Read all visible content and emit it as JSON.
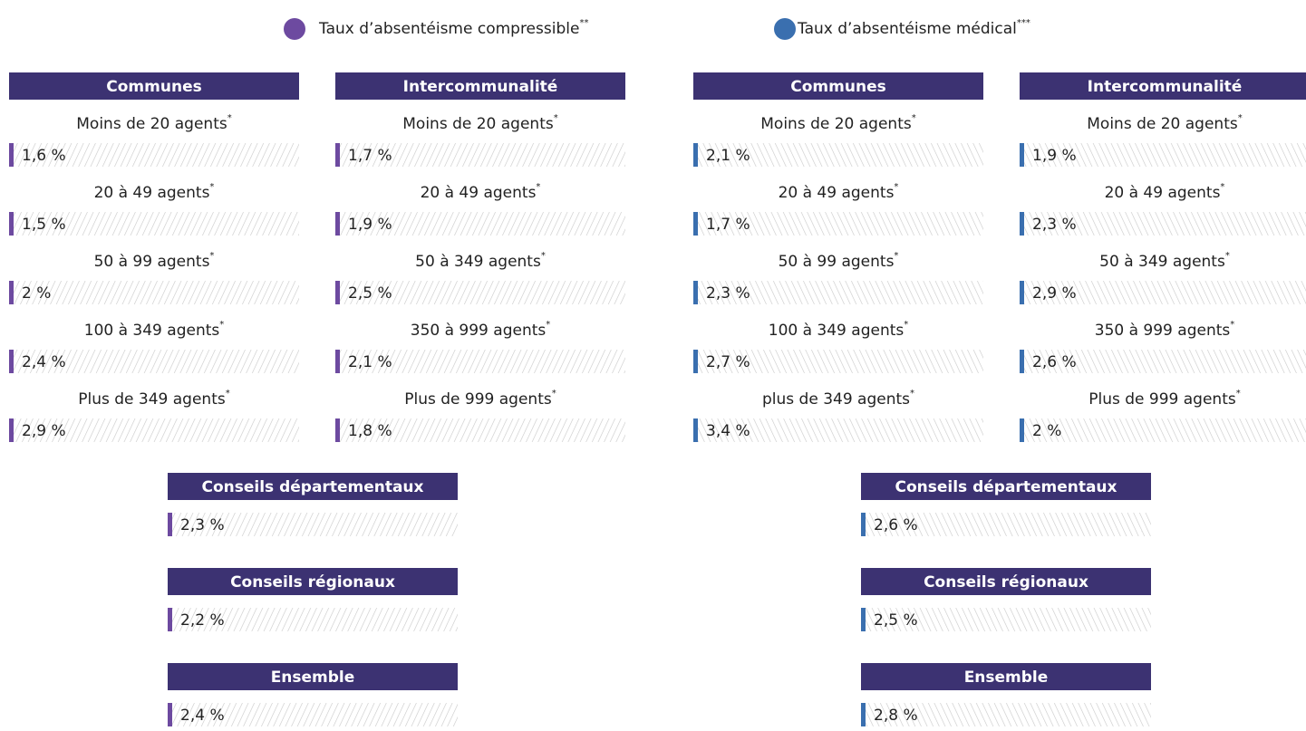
{
  "panels": [
    {
      "color": "#6d4aa0",
      "hatch": "left",
      "legend": {
        "label": "Taux d’absentéisme compressible",
        "note": "**"
      },
      "groups": [
        {
          "title": "Communes",
          "rows": [
            {
              "label": "Moins de 20 agents",
              "note": "*",
              "value": "1,6 %"
            },
            {
              "label": "20 à 49 agents",
              "note": "*",
              "value": "1,5 %"
            },
            {
              "label": "50 à 99 agents",
              "note": "*",
              "value": "2 %"
            },
            {
              "label": "100 à 349 agents",
              "note": "*",
              "value": "2,4 %"
            },
            {
              "label": "Plus de 349 agents",
              "note": "*",
              "value": "2,9 %"
            }
          ]
        },
        {
          "title": "Intercommunalité",
          "rows": [
            {
              "label": "Moins de 20 agents",
              "note": "*",
              "value": "1,7 %"
            },
            {
              "label": "20 à 49 agents",
              "note": "*",
              "value": "1,9 %"
            },
            {
              "label": "50 à 349 agents",
              "note": "*",
              "value": "2,5 %"
            },
            {
              "label": "350 à 999 agents",
              "note": "*",
              "value": "2,1 %"
            },
            {
              "label": "Plus de 999 agents",
              "note": "*",
              "value": "1,8 %"
            }
          ]
        }
      ],
      "totals": [
        {
          "title": "Conseils départementaux",
          "value": "2,3 %"
        },
        {
          "title": "Conseils régionaux",
          "value": "2,2 %"
        },
        {
          "title": "Ensemble",
          "value": "2,4 %"
        }
      ]
    },
    {
      "color": "#3a6faf",
      "hatch": "right",
      "legend": {
        "label": "Taux d’absentéisme médical",
        "note": "***"
      },
      "groups": [
        {
          "title": "Communes",
          "rows": [
            {
              "label": "Moins de 20 agents",
              "note": "*",
              "value": "2,1 %"
            },
            {
              "label": "20 à 49 agents",
              "note": "*",
              "value": "1,7 %"
            },
            {
              "label": "50 à 99 agents",
              "note": "*",
              "value": "2,3 %"
            },
            {
              "label": "100 à 349 agents",
              "note": "*",
              "value": "2,7 %"
            },
            {
              "label": "plus de 349 agents",
              "note": "*",
              "value": "3,4 %"
            }
          ]
        },
        {
          "title": "Intercommunalité",
          "rows": [
            {
              "label": "Moins de 20 agents",
              "note": "*",
              "value": "1,9 %"
            },
            {
              "label": "20 à 49 agents",
              "note": "*",
              "value": "2,3 %"
            },
            {
              "label": "50 à 349 agents",
              "note": "*",
              "value": "2,9 %"
            },
            {
              "label": "350 à 999 agents",
              "note": "*",
              "value": "2,6 %"
            },
            {
              "label": "Plus de 999 agents",
              "note": "*",
              "value": "2 %"
            }
          ]
        }
      ],
      "totals": [
        {
          "title": "Conseils départementaux",
          "value": "2,6 %"
        },
        {
          "title": "Conseils régionaux",
          "value": "2,5 %"
        },
        {
          "title": "Ensemble",
          "value": "2,8 %"
        }
      ]
    }
  ]
}
